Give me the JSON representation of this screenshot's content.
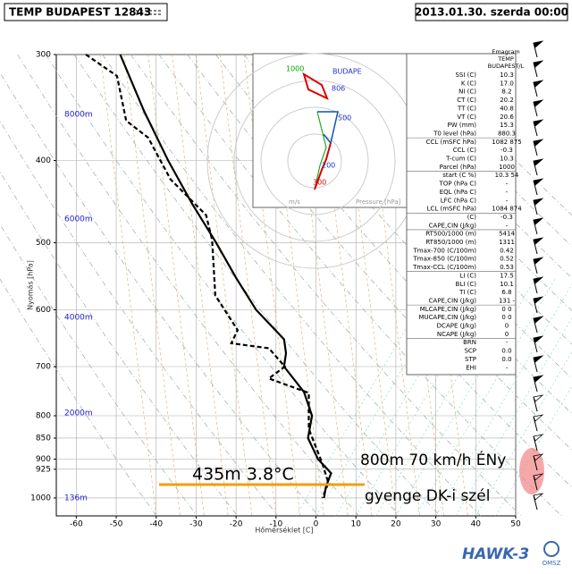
{
  "header": {
    "station": "TEMP BUDAPEST 12843",
    "datetime": "2013.01.30. szerda 00:00"
  },
  "chart_data": {
    "type": "sounding",
    "xlabel": "Hőmérséklet [C]",
    "ylabel": "Nyomás [hPa]",
    "xlim": [
      -65,
      50
    ],
    "ylim": [
      300,
      1050
    ],
    "log_y": true,
    "y_inverted": true,
    "grid": true,
    "xticks": [
      -60,
      -50,
      -40,
      -30,
      -20,
      -10,
      0,
      10,
      20,
      30,
      40,
      50
    ],
    "yticks": [
      300,
      400,
      500,
      600,
      700,
      800,
      850,
      900,
      925,
      1000
    ],
    "height_labels": [
      "8000m",
      "6000m",
      "4000m",
      "2000m",
      "136m"
    ],
    "series": [
      {
        "color": "#000000",
        "dash": false,
        "pressure": [
          300,
          350,
          400,
          450,
          500,
          550,
          600,
          650,
          675,
          700,
          750,
          800,
          850,
          900,
          935,
          970,
          1000
        ],
        "temperature": [
          -49,
          -43,
          -37,
          -31,
          -25,
          -20,
          -15,
          -8,
          -7.5,
          -8,
          -3,
          -1,
          -2,
          0.5,
          3.8,
          2.5,
          2
        ]
      },
      {
        "color": "#000000",
        "dash": true,
        "pressure": [
          300,
          318,
          359,
          376,
          421,
          464,
          496,
          577,
          634,
          657,
          666,
          700,
          723,
          752,
          829,
          911,
          960,
          1000
        ],
        "temperature": [
          -57.6,
          -49.8,
          -47.5,
          -42,
          -36.4,
          -27.5,
          -26,
          -25.2,
          -19.6,
          -21.2,
          -11.8,
          -7.8,
          -11.8,
          -1.8,
          -1.8,
          1.6,
          3.1,
          1.6
        ]
      }
    ],
    "annotations": [
      "435m 3.8°C",
      "800m 70 km/h ÉNy",
      "gyenge DK-i szél"
    ]
  },
  "hodograph": {
    "labels": [
      "1000",
      "BUDAPE",
      "806",
      "500",
      "300",
      "200"
    ],
    "axis_labels": [
      "m/s",
      "Pressure [hPa]"
    ]
  },
  "table": {
    "title": [
      "Emagram",
      "TEMP",
      "BUDAPEST/L"
    ],
    "rows": [
      [
        "SSI (C)",
        "10.3"
      ],
      [
        "K (C)",
        "17.0"
      ],
      [
        "NI (C)",
        "8.2"
      ],
      [
        "CT (C)",
        "20.2"
      ],
      [
        "TT (C)",
        "40.8"
      ],
      [
        "VT (C)",
        "20.6"
      ],
      [
        "PW (mm)",
        "15.3"
      ],
      [
        "T0 level (hPa)",
        "880.3"
      ],
      [
        "CCL (mSFC hPa)",
        "1082 875"
      ],
      [
        "CCL (C)",
        "-0.3"
      ],
      [
        "T-cum (C)",
        "10.3"
      ],
      [
        "Parcel (hPa)",
        "1000"
      ],
      [
        "start (C %)",
        "10.3 54"
      ],
      [
        "TOP (hPa C)",
        "-"
      ],
      [
        "EQL (hPa C)",
        "-"
      ],
      [
        "LFC (hPa C)",
        "-"
      ],
      [
        "LCL (mSFC hPa)",
        "1084 874"
      ],
      [
        "(C)",
        "-0.3"
      ],
      [
        "CAPE,CIN (J/kg)",
        "-"
      ],
      [
        "RT500/1000 (m)",
        "5414"
      ],
      [
        "RT850/1000 (m)",
        "1311"
      ],
      [
        "Tmax-700 (C/100m)",
        "0.42"
      ],
      [
        "Tmax-850 (C/100m)",
        "0.52"
      ],
      [
        "Tmax-CCL (C/100m)",
        "0.53"
      ],
      [
        "LI (C)",
        "17.5"
      ],
      [
        "BLI (C)",
        "10.1"
      ],
      [
        "TI (C)",
        "6.8"
      ],
      [
        "CAPE,CIN (J/kg)",
        "131 -"
      ],
      [
        "MLCAPE,CIN (J/kg)",
        "0 0"
      ],
      [
        "MUCAPE,CIN (J/kg)",
        "0 0"
      ],
      [
        "DCAPE (J/kg)",
        "0"
      ],
      [
        "NCAPE (J/kg)",
        "0"
      ],
      [
        "BRN",
        "-"
      ],
      [
        "SCP",
        "0.0"
      ],
      [
        "STP",
        "0.0"
      ],
      [
        "EHI",
        "-"
      ]
    ]
  },
  "logo": {
    "name": "HAWK-3",
    "org": "OMSZ"
  }
}
